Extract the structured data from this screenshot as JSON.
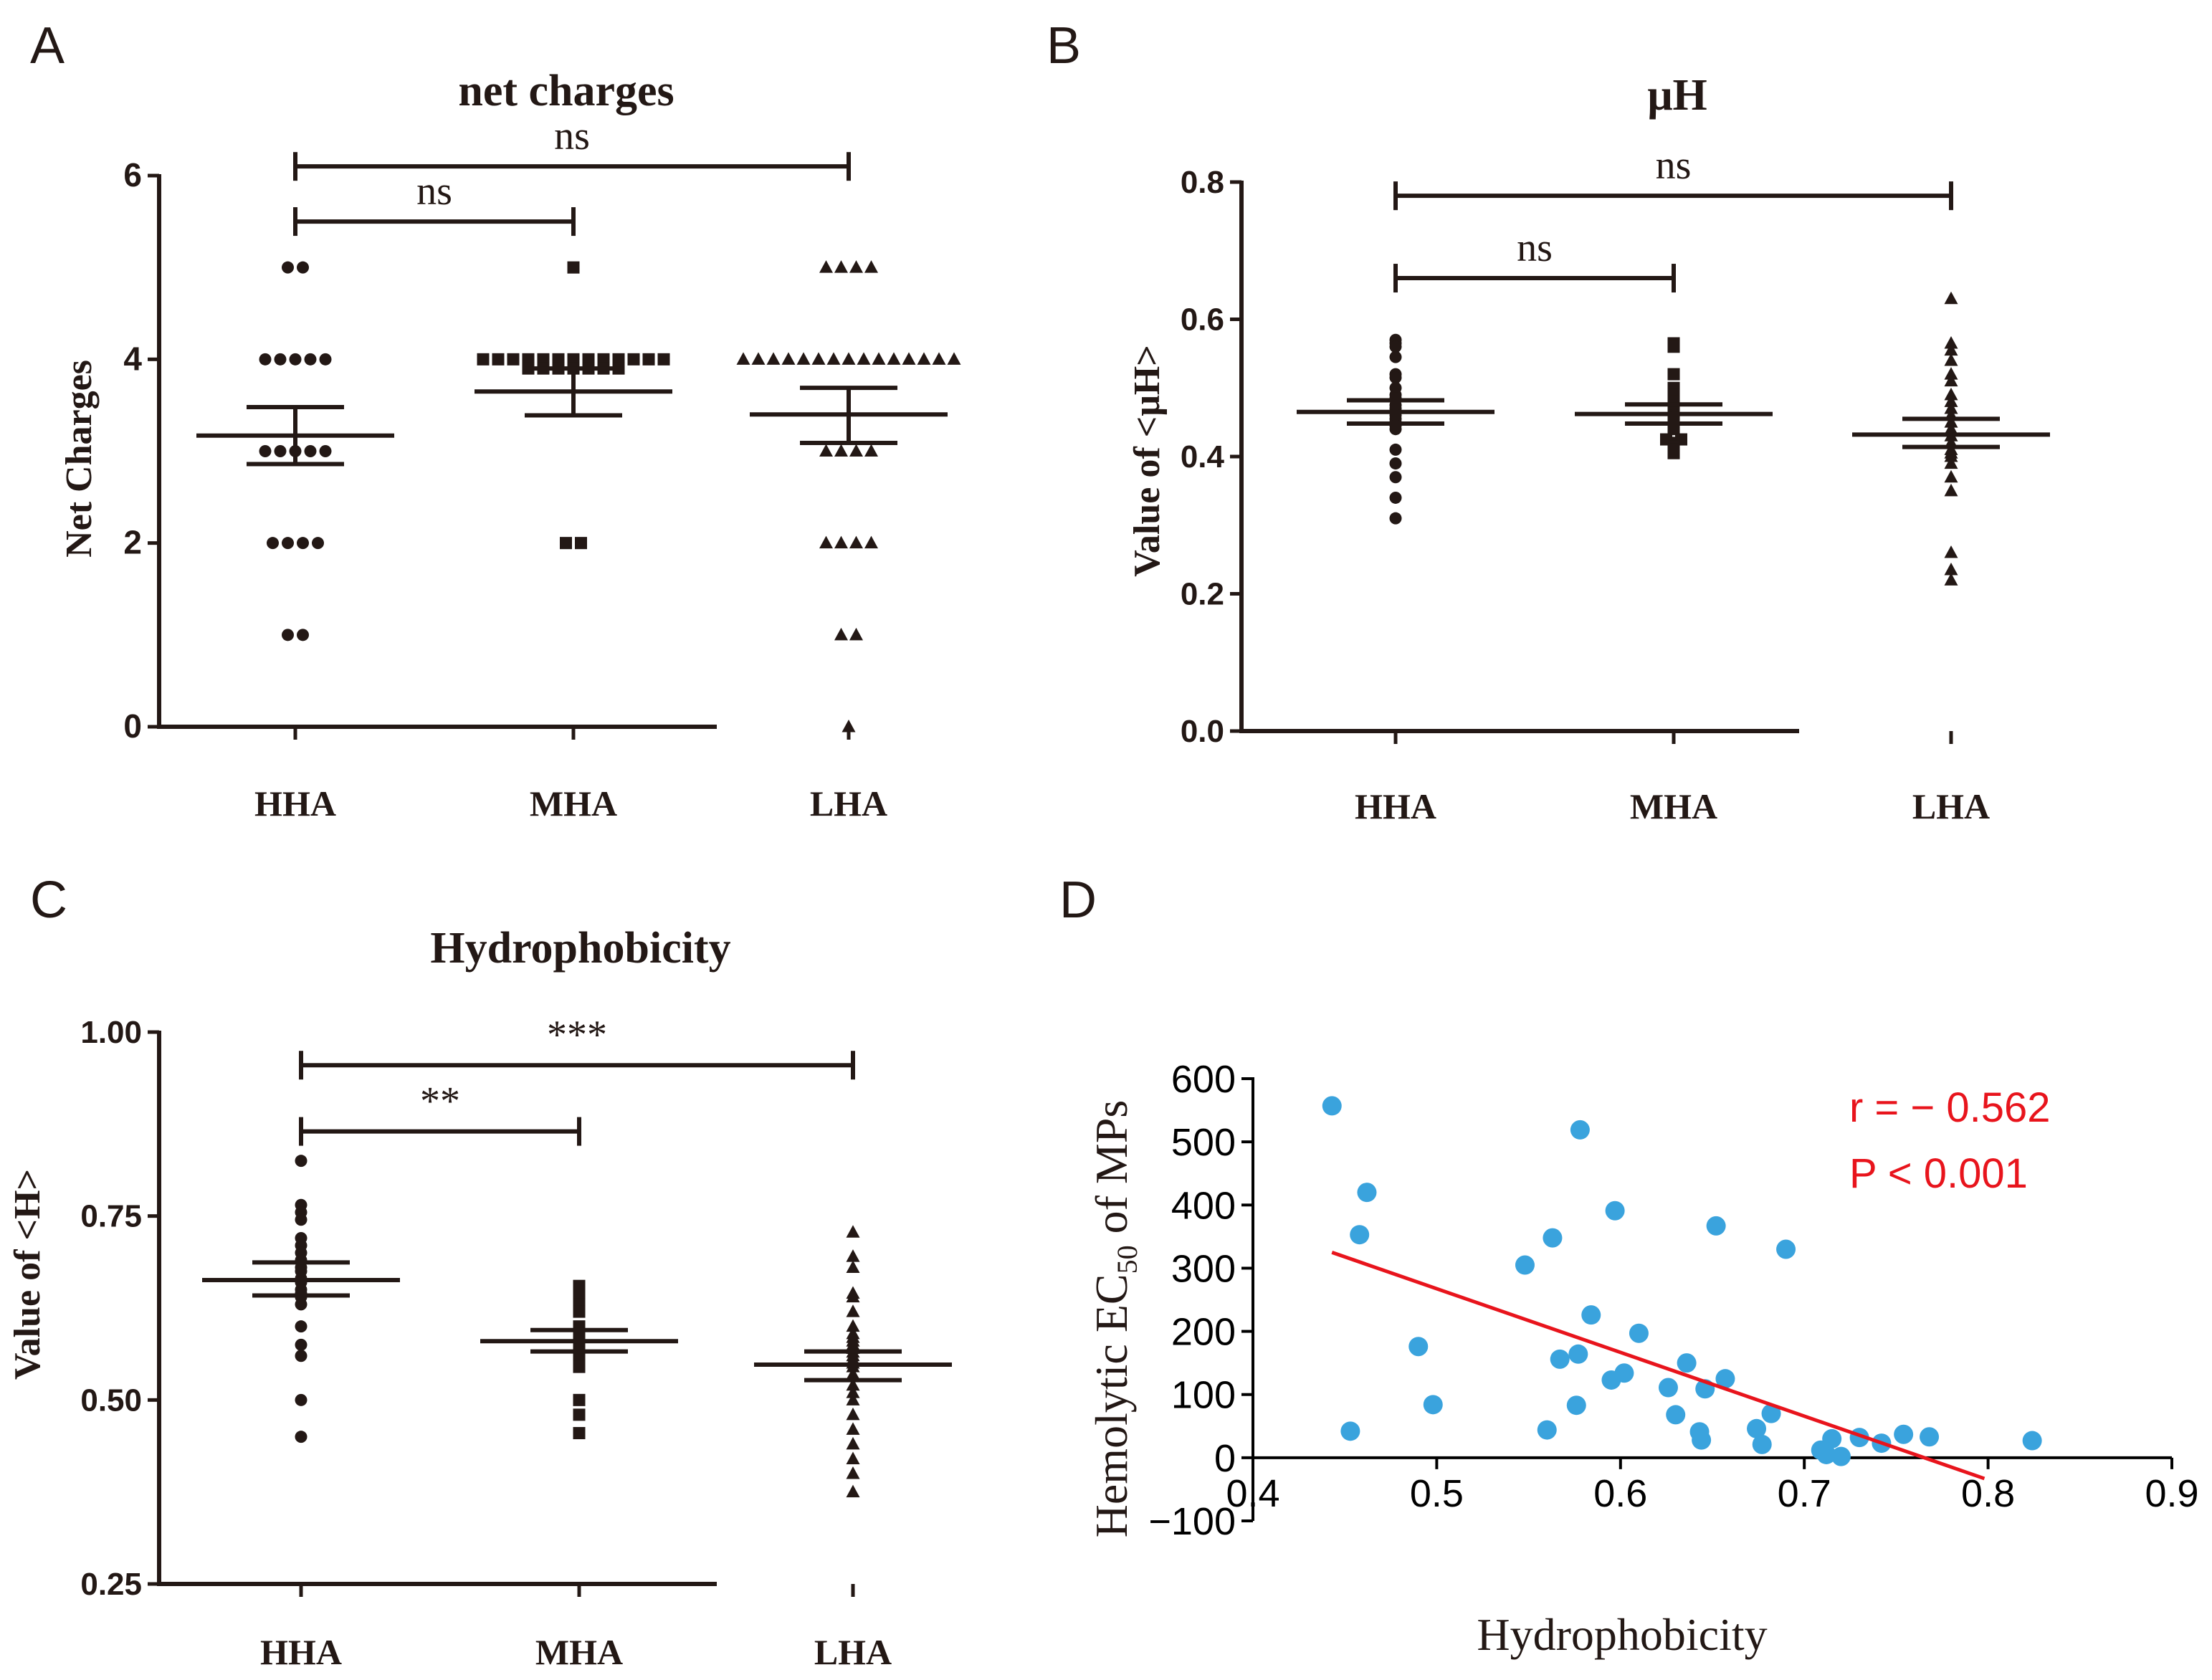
{
  "colors": {
    "ink": "#231815",
    "point_blue": "#3aa3dd",
    "fit_red": "#e8141c",
    "stat_red": "#e8141c"
  },
  "chart_data": [
    {
      "panel": "A",
      "type": "scatter",
      "title": "net  charges",
      "xlabel": "",
      "ylabel": "Net Charges",
      "categories": [
        "HHA",
        "MHA",
        "LHA"
      ],
      "ylim": [
        0,
        6
      ],
      "yticks": [
        0,
        2,
        4,
        6
      ],
      "ytick_labels": [
        "0",
        "2",
        "4",
        "6"
      ],
      "markers": [
        "circle",
        "square",
        "triangle"
      ],
      "series": [
        {
          "name": "HHA",
          "mean": 3.17,
          "sem_low": 2.86,
          "sem_high": 3.48,
          "values": [
            5,
            5,
            4,
            4,
            4,
            4,
            4,
            3,
            3,
            3,
            3,
            3,
            2,
            2,
            2,
            2,
            1,
            1
          ]
        },
        {
          "name": "MHA",
          "mean": 3.65,
          "sem_low": 3.39,
          "sem_high": 3.9,
          "values": [
            5,
            4,
            4,
            4,
            4,
            4,
            4,
            4,
            4,
            4,
            4,
            4,
            4,
            4,
            3.9,
            3.9,
            3.9,
            3.9,
            3.9,
            3.9,
            3.9,
            2,
            2
          ]
        },
        {
          "name": "LHA",
          "mean": 3.4,
          "sem_low": 3.09,
          "sem_high": 3.69,
          "values": [
            5,
            5,
            5,
            5,
            4,
            4,
            4,
            4,
            4,
            4,
            4,
            4,
            4,
            4,
            4,
            4,
            4,
            4,
            4,
            3,
            3,
            3,
            3,
            2,
            2,
            2,
            2,
            1,
            1,
            0
          ]
        }
      ],
      "comparisons": [
        {
          "from": "HHA",
          "to": "MHA",
          "label": "ns",
          "y": 5.5
        },
        {
          "from": "HHA",
          "to": "LHA",
          "label": "ns",
          "y": 6.1
        }
      ]
    },
    {
      "panel": "B",
      "type": "scatter",
      "title": "μH",
      "xlabel": "",
      "ylabel": "Value of <μH>",
      "categories": [
        "HHA",
        "MHA",
        "LHA"
      ],
      "ylim": [
        0,
        0.8
      ],
      "yticks": [
        0,
        0.2,
        0.4,
        0.6,
        0.8
      ],
      "ytick_labels": [
        "0.0",
        "0.2",
        "0.4",
        "0.6",
        "0.8"
      ],
      "markers": [
        "circle",
        "square",
        "triangle"
      ],
      "series": [
        {
          "name": "HHA",
          "mean": 0.465,
          "sem_low": 0.448,
          "sem_high": 0.482,
          "values": [
            0.57,
            0.565,
            0.56,
            0.545,
            0.52,
            0.515,
            0.5,
            0.49,
            0.485,
            0.475,
            0.47,
            0.465,
            0.46,
            0.455,
            0.45,
            0.445,
            0.44,
            0.41,
            0.39,
            0.37,
            0.34,
            0.31
          ]
        },
        {
          "name": "MHA",
          "mean": 0.462,
          "sem_low": 0.448,
          "sem_high": 0.476,
          "values": [
            0.565,
            0.56,
            0.52,
            0.5,
            0.49,
            0.48,
            0.47,
            0.465,
            0.46,
            0.455,
            0.45,
            0.44,
            0.425,
            0.425,
            0.42,
            0.415,
            0.41,
            0.405
          ]
        },
        {
          "name": "LHA",
          "mean": 0.432,
          "sem_low": 0.414,
          "sem_high": 0.455,
          "values": [
            0.63,
            0.565,
            0.555,
            0.54,
            0.52,
            0.51,
            0.49,
            0.48,
            0.47,
            0.46,
            0.45,
            0.44,
            0.43,
            0.42,
            0.41,
            0.405,
            0.4,
            0.39,
            0.37,
            0.35,
            0.26,
            0.235,
            0.22
          ]
        }
      ],
      "comparisons": [
        {
          "from": "HHA",
          "to": "MHA",
          "label": "ns",
          "y": 0.66
        },
        {
          "from": "HHA",
          "to": "LHA",
          "label": "ns",
          "y": 0.78
        }
      ]
    },
    {
      "panel": "C",
      "type": "scatter",
      "title": "Hydrophobicity",
      "xlabel": "",
      "ylabel": "Value of <H>",
      "categories": [
        "HHA",
        "MHA",
        "LHA"
      ],
      "ylim": [
        0.25,
        1.0
      ],
      "yticks": [
        0.25,
        0.5,
        0.75,
        1.0
      ],
      "ytick_labels": [
        "0.25",
        "0.50",
        "0.75",
        "1.00"
      ],
      "markers": [
        "circle",
        "square",
        "triangle"
      ],
      "series": [
        {
          "name": "HHA",
          "mean": 0.663,
          "sem_low": 0.642,
          "sem_high": 0.687,
          "values": [
            0.825,
            0.765,
            0.755,
            0.745,
            0.72,
            0.71,
            0.7,
            0.69,
            0.68,
            0.675,
            0.665,
            0.66,
            0.65,
            0.645,
            0.64,
            0.63,
            0.6,
            0.575,
            0.56,
            0.5,
            0.45
          ]
        },
        {
          "name": "MHA",
          "mean": 0.58,
          "sem_low": 0.566,
          "sem_high": 0.595,
          "values": [
            0.655,
            0.645,
            0.63,
            0.62,
            0.6,
            0.595,
            0.59,
            0.585,
            0.58,
            0.575,
            0.57,
            0.565,
            0.56,
            0.555,
            0.55,
            0.545,
            0.5,
            0.48,
            0.455
          ]
        },
        {
          "name": "LHA",
          "mean": 0.548,
          "sem_low": 0.527,
          "sem_high": 0.566,
          "values": [
            0.728,
            0.695,
            0.68,
            0.645,
            0.64,
            0.62,
            0.6,
            0.59,
            0.585,
            0.58,
            0.575,
            0.57,
            0.565,
            0.56,
            0.555,
            0.55,
            0.545,
            0.535,
            0.52,
            0.51,
            0.5,
            0.48,
            0.46,
            0.44,
            0.42,
            0.4,
            0.375
          ]
        }
      ],
      "comparisons": [
        {
          "from": "HHA",
          "to": "MHA",
          "label": "**",
          "y": 0.865
        },
        {
          "from": "HHA",
          "to": "LHA",
          "label": "***",
          "y": 0.955
        }
      ]
    },
    {
      "panel": "D",
      "type": "scatter",
      "title": "",
      "xlabel": "Hydrophobicity",
      "ylabel": "Hemolytic EC",
      "ylabel_sub": "50",
      "ylabel_tail": " of MPs",
      "xlim": [
        0.4,
        0.9
      ],
      "ylim": [
        -100,
        600
      ],
      "xticks": [
        0.4,
        0.5,
        0.6,
        0.7,
        0.8,
        0.9
      ],
      "xtick_labels": [
        "0.4",
        "0.5",
        "0.6",
        "0.7",
        "0.8",
        "0.9"
      ],
      "yticks": [
        -100,
        0,
        100,
        200,
        300,
        400,
        500,
        600
      ],
      "ytick_labels": [
        "−100",
        "0",
        "100",
        "200",
        "300",
        "400",
        "500",
        "600"
      ],
      "annotations": [
        "r = − 0.562",
        "P < 0.001"
      ],
      "fit_line": {
        "x1": 0.443,
        "y1": 325,
        "x2": 0.798,
        "y2": -33
      },
      "points": [
        [
          0.443,
          557
        ],
        [
          0.453,
          42
        ],
        [
          0.458,
          353
        ],
        [
          0.462,
          420
        ],
        [
          0.49,
          176
        ],
        [
          0.498,
          84
        ],
        [
          0.548,
          305
        ],
        [
          0.56,
          44
        ],
        [
          0.563,
          348
        ],
        [
          0.567,
          156
        ],
        [
          0.576,
          83
        ],
        [
          0.577,
          164
        ],
        [
          0.578,
          519
        ],
        [
          0.584,
          226
        ],
        [
          0.595,
          123
        ],
        [
          0.597,
          391
        ],
        [
          0.602,
          134
        ],
        [
          0.61,
          197
        ],
        [
          0.626,
          111
        ],
        [
          0.63,
          68
        ],
        [
          0.636,
          150
        ],
        [
          0.643,
          41
        ],
        [
          0.644,
          28
        ],
        [
          0.646,
          109
        ],
        [
          0.652,
          367
        ],
        [
          0.657,
          125
        ],
        [
          0.674,
          46
        ],
        [
          0.677,
          21
        ],
        [
          0.682,
          70
        ],
        [
          0.69,
          330
        ],
        [
          0.709,
          12
        ],
        [
          0.712,
          5
        ],
        [
          0.715,
          30
        ],
        [
          0.72,
          2
        ],
        [
          0.73,
          32
        ],
        [
          0.742,
          23
        ],
        [
          0.754,
          37
        ],
        [
          0.768,
          33
        ],
        [
          0.824,
          27
        ]
      ]
    }
  ],
  "panel_letters": [
    "A",
    "B",
    "C",
    "D"
  ]
}
